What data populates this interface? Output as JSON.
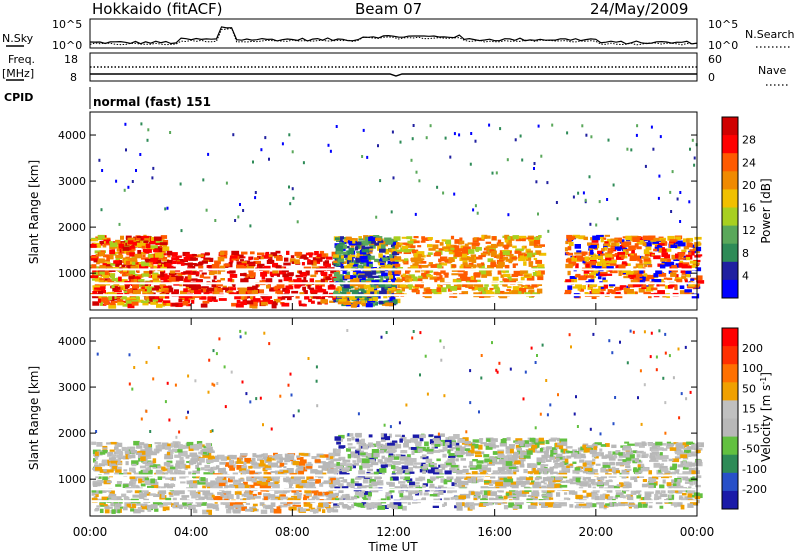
{
  "header": {
    "station": "Hokkaido (fitACF)",
    "beam": "Beam 07",
    "date": "24/May/2009"
  },
  "strips": {
    "nsky_label": "N.Sky",
    "nsky_ticks": [
      "10^5",
      "10^0"
    ],
    "nsearch_label": "N.Search",
    "nsearch_ticks": [
      "10^5",
      "10^0"
    ],
    "freq_label": "Freq.",
    "freq_unit": "[MHz]",
    "freq_ticks": [
      "18",
      "8"
    ],
    "nave_label": "Nave",
    "nave_ticks": [
      "60",
      "0"
    ],
    "cpid_label": "CPID",
    "cpid_value": "normal (fast) 151"
  },
  "colors": {
    "power": [
      "#0000ff",
      "#2020a0",
      "#2e8b57",
      "#5aa85a",
      "#a8d020",
      "#f0c000",
      "#f08a00",
      "#ff5a00",
      "#ff0000",
      "#d00000"
    ],
    "velocity": [
      "#1a1aa8",
      "#2850c8",
      "#2e8b57",
      "#62c040",
      "#b8b8b8",
      "#c0c0c0",
      "#f0a000",
      "#ff7000",
      "#ff3000",
      "#ff0000"
    ]
  },
  "chart_data": [
    {
      "type": "heatmap",
      "name": "power-panel",
      "ylabel": "Slant Range [km]",
      "yticks": [
        "1000",
        "2000",
        "3000",
        "4000"
      ],
      "ylim": [
        200,
        4500
      ],
      "colorbar_label": "Power [dB]",
      "colorbar_ticks": [
        "4",
        "8",
        "12",
        "16",
        "20",
        "24",
        "28"
      ],
      "colorbar_range": [
        0,
        30
      ]
    },
    {
      "type": "heatmap",
      "name": "velocity-panel",
      "ylabel": "Slant Range [km]",
      "yticks": [
        "1000",
        "2000",
        "3000",
        "4000"
      ],
      "ylim": [
        200,
        4500
      ],
      "colorbar_label": "Velocity [m s",
      "colorbar_label_sup": "-1",
      "colorbar_label_end": "]",
      "colorbar_ticks": [
        "200",
        "100",
        "50",
        "15",
        "-15",
        "-50",
        "-100",
        "-200"
      ]
    }
  ],
  "x_axis": {
    "ticks": [
      "00:00",
      "04:00",
      "08:00",
      "12:00",
      "16:00",
      "20:00",
      "00:00"
    ],
    "label": "Time UT"
  }
}
